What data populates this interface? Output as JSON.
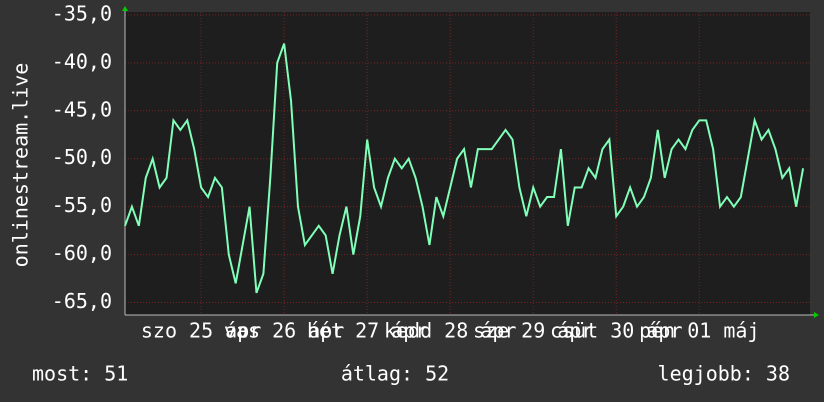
{
  "chart_data": {
    "type": "line",
    "y_label": "onlinestream.live",
    "color": "#80ffb8",
    "values": [
      -57,
      -55,
      -57,
      -52,
      -50,
      -53,
      -52,
      -46,
      -47,
      -46,
      -49,
      -53,
      -54,
      -52,
      -53,
      -60,
      -63,
      -59,
      -55,
      -64,
      -62,
      -52,
      -40,
      -38,
      -44,
      -55,
      -59,
      -58,
      -57,
      -58,
      -62,
      -58,
      -55,
      -60,
      -56,
      -48,
      -53,
      -55,
      -52,
      -50,
      -51,
      -50,
      -52,
      -55,
      -59,
      -54,
      -56,
      -53,
      -50,
      -49,
      -53,
      -49,
      -49,
      -49,
      -48,
      -47,
      -48,
      -53,
      -56,
      -53,
      -55,
      -54,
      -54,
      -49,
      -57,
      -53,
      -53,
      -51,
      -52,
      -49,
      -48,
      -56,
      -55,
      -53,
      -55,
      -54,
      -52,
      -47,
      -52,
      -49,
      -48,
      -49,
      -47,
      -46,
      -46,
      -49,
      -55,
      -54,
      -55,
      -54,
      -50,
      -46,
      -48,
      -47,
      -49,
      -52,
      -51,
      -55,
      -51
    ],
    "xlim": [
      0,
      99
    ],
    "xticks": [
      {
        "value": 11,
        "label": "szo 25 ápr"
      },
      {
        "value": 23,
        "label": "vas 26 ápr"
      },
      {
        "value": 35,
        "label": "hét 27 ápr"
      },
      {
        "value": 47,
        "label": "kedd 28 ápr"
      },
      {
        "value": 59,
        "label": "sze 29 ápr"
      },
      {
        "value": 71,
        "label": "csüt 30 ápr"
      },
      {
        "value": 83,
        "label": "pén 01 máj"
      }
    ],
    "ylim": [
      -66.3,
      -34.7
    ],
    "yticks": [
      {
        "value": -35,
        "label": "-35,0"
      },
      {
        "value": -40,
        "label": "-40,0"
      },
      {
        "value": -45,
        "label": "-45,0"
      },
      {
        "value": -50,
        "label": "-50,0"
      },
      {
        "value": -55,
        "label": "-55,0"
      },
      {
        "value": -60,
        "label": "-60,0"
      },
      {
        "value": -65,
        "label": "-65,0"
      }
    ],
    "grid": true,
    "footer": [
      "most: 51",
      "átlag: 52",
      "legjobb: 38"
    ]
  }
}
